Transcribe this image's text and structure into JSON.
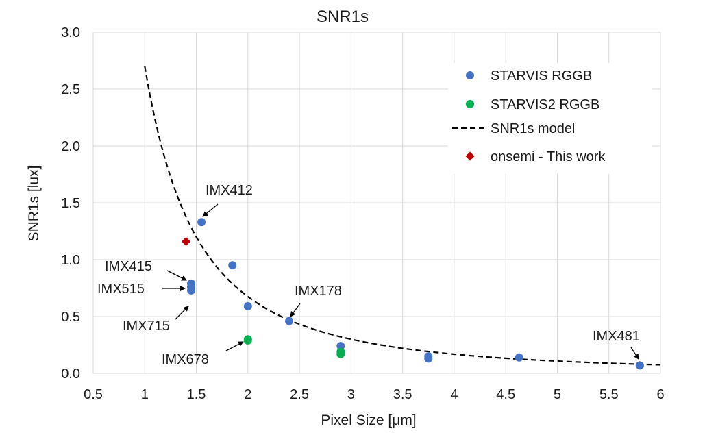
{
  "chart_data": {
    "type": "scatter",
    "title": "SNR1s",
    "xlabel": "Pixel Size [μm]",
    "ylabel": "SNR1s [lux]",
    "xlim": [
      0.5,
      6
    ],
    "ylim": [
      0,
      3
    ],
    "x_ticks": [
      "0.5",
      "1",
      "1.5",
      "2",
      "2.5",
      "3",
      "3.5",
      "4",
      "4.5",
      "5",
      "5.5",
      "6"
    ],
    "y_ticks": [
      "0.0",
      "0.5",
      "1.0",
      "1.5",
      "2.0",
      "2.5",
      "3.0"
    ],
    "grid": "horizontal and vertical major gridlines",
    "legend_position": "top-right",
    "colors": {
      "starvis": "#4472C4",
      "starvis2": "#00B050",
      "model": "#000000",
      "onsemi": "#C00000"
    },
    "series": [
      {
        "name": "STARVIS RGGB",
        "marker": "circle",
        "color": "#4472C4",
        "points": [
          {
            "x": 1.55,
            "y": 1.33
          },
          {
            "x": 1.85,
            "y": 0.95
          },
          {
            "x": 1.45,
            "y": 0.79
          },
          {
            "x": 1.45,
            "y": 0.76
          },
          {
            "x": 1.45,
            "y": 0.73
          },
          {
            "x": 2.0,
            "y": 0.59
          },
          {
            "x": 2.4,
            "y": 0.46
          },
          {
            "x": 2.9,
            "y": 0.24
          },
          {
            "x": 3.75,
            "y": 0.15
          },
          {
            "x": 3.75,
            "y": 0.13
          },
          {
            "x": 4.63,
            "y": 0.14
          },
          {
            "x": 5.8,
            "y": 0.07
          }
        ]
      },
      {
        "name": "STARVIS2 RGGB",
        "marker": "circle",
        "color": "#00B050",
        "points": [
          {
            "x": 2.0,
            "y": 0.3
          },
          {
            "x": 2.0,
            "y": 0.29
          },
          {
            "x": 2.9,
            "y": 0.19
          },
          {
            "x": 2.9,
            "y": 0.17
          }
        ]
      },
      {
        "name": "SNR1s model",
        "line_style": "dashed",
        "color": "#000000",
        "model": "y = 2.7 / x^2",
        "x_range": [
          1.0,
          6.0
        ]
      },
      {
        "name": "onsemi - This work",
        "marker": "diamond",
        "color": "#C00000",
        "points": [
          {
            "x": 1.4,
            "y": 1.16
          }
        ]
      }
    ],
    "annotations": [
      {
        "text": "IMX412",
        "point": {
          "x": 1.55,
          "y": 1.33
        }
      },
      {
        "text": "IMX415",
        "point": {
          "x": 1.45,
          "y": 0.79
        }
      },
      {
        "text": "IMX515",
        "point": {
          "x": 1.45,
          "y": 0.76
        }
      },
      {
        "text": "IMX715",
        "point": {
          "x": 1.45,
          "y": 0.73
        }
      },
      {
        "text": "IMX178",
        "point": {
          "x": 2.4,
          "y": 0.46
        }
      },
      {
        "text": "IMX678",
        "point": {
          "x": 2.0,
          "y": 0.3
        }
      },
      {
        "text": "IMX481",
        "point": {
          "x": 5.8,
          "y": 0.07
        }
      }
    ]
  }
}
